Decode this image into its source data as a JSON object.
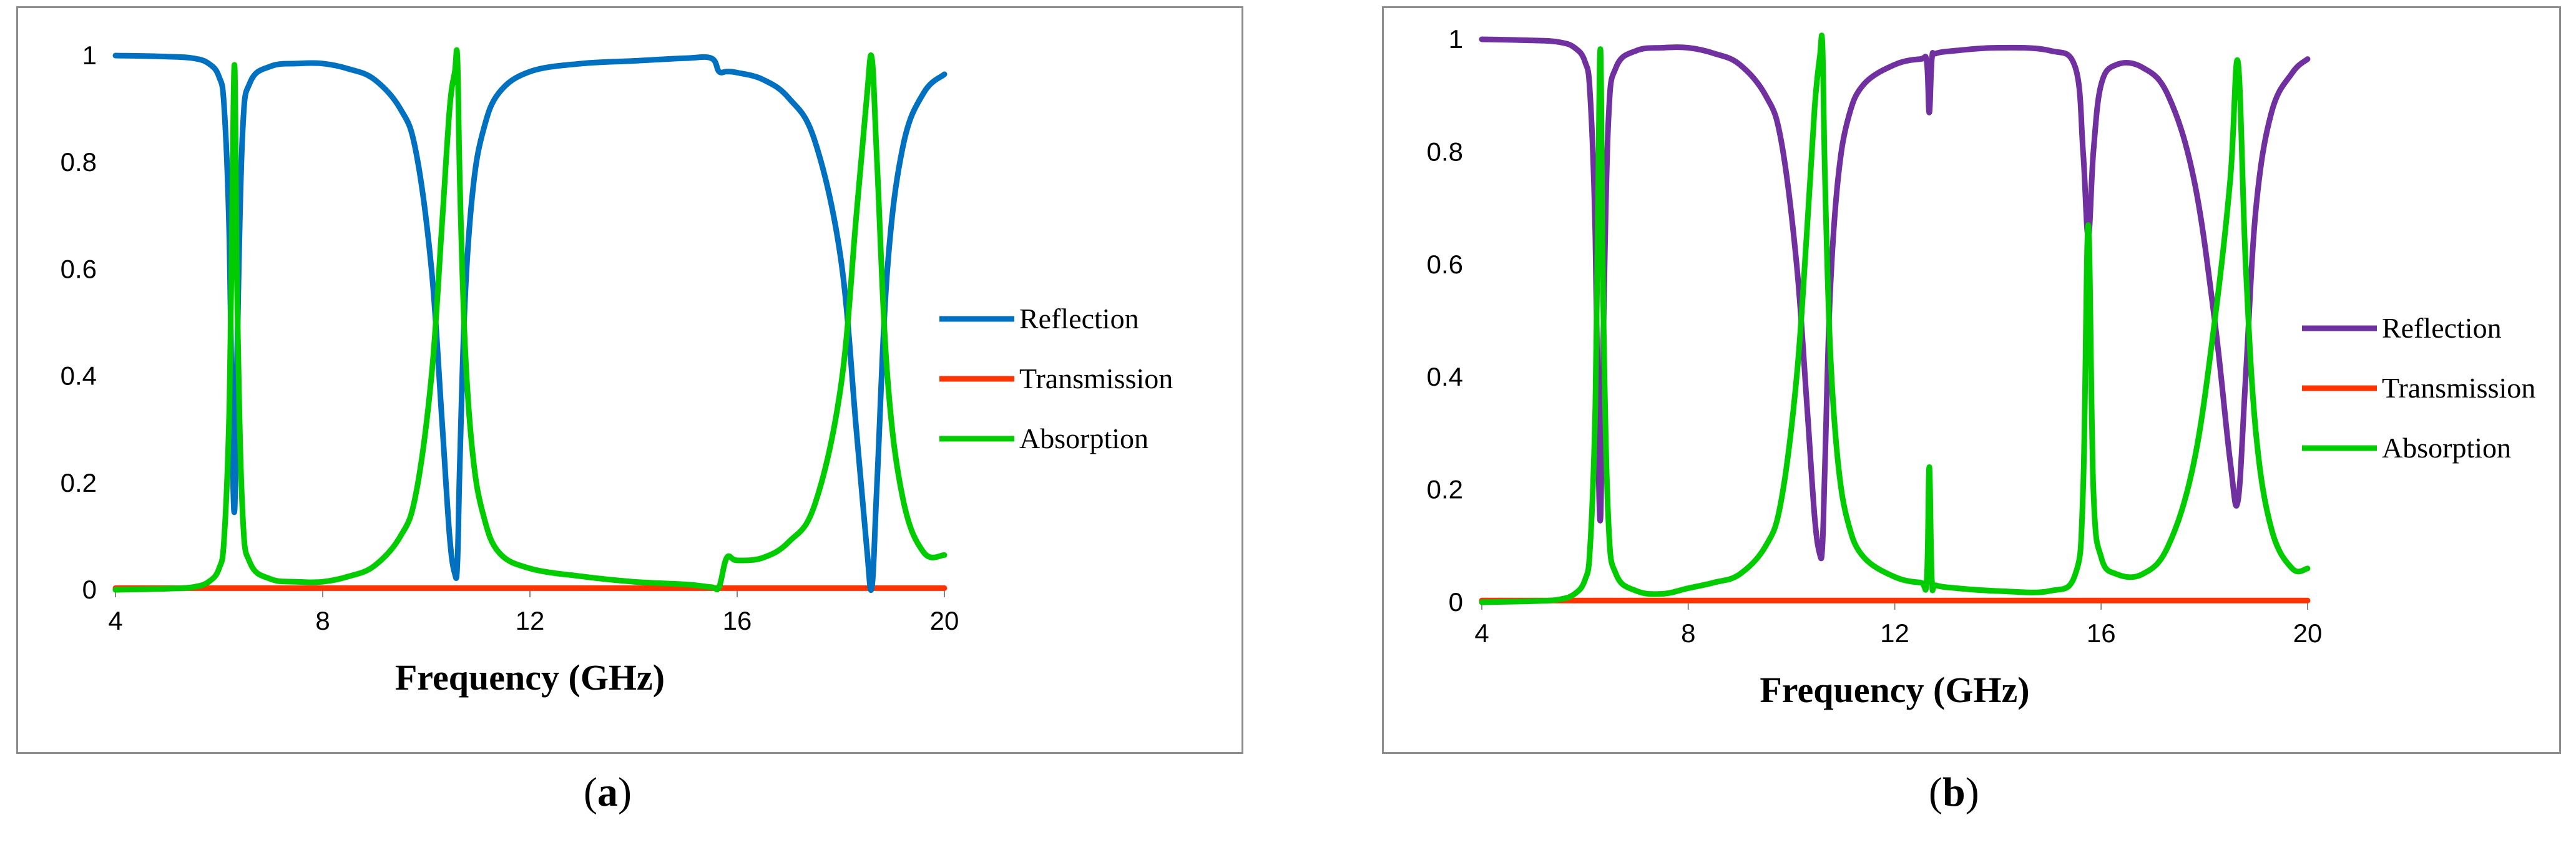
{
  "chart_data": [
    {
      "type": "line",
      "panel": "a",
      "caption": "a",
      "title": "",
      "xlabel": "Frequency (GHz)",
      "ylabel": "",
      "xlim": [
        4,
        20
      ],
      "ylim": [
        0,
        1
      ],
      "xticks": [
        "4",
        "8",
        "12",
        "16",
        "20"
      ],
      "yticks": [
        "0",
        "0.2",
        "0.4",
        "0.6",
        "0.8",
        "1"
      ],
      "legend_position": "right",
      "series": [
        {
          "name": "Reflection",
          "color": "#0070c0",
          "x": [
            4,
            5,
            5.5,
            5.8,
            6.0,
            6.1,
            6.2,
            6.25,
            6.3,
            6.35,
            6.45,
            6.6,
            7.0,
            7.5,
            8,
            8.5,
            9,
            9.5,
            9.8,
            10.1,
            10.3,
            10.45,
            10.55,
            10.6,
            10.65,
            10.75,
            10.9,
            11.1,
            11.4,
            12,
            13,
            14,
            15,
            15.5,
            15.65,
            15.8,
            16,
            16.5,
            17,
            17.5,
            18,
            18.3,
            18.5,
            18.6,
            18.7,
            18.9,
            19.2,
            19.6,
            20
          ],
          "values": [
            1,
            0.998,
            0.995,
            0.985,
            0.96,
            0.9,
            0.65,
            0.3,
            0.15,
            0.45,
            0.85,
            0.95,
            0.98,
            0.985,
            0.985,
            0.975,
            0.955,
            0.9,
            0.82,
            0.6,
            0.32,
            0.1,
            0.03,
            0.05,
            0.25,
            0.55,
            0.75,
            0.86,
            0.93,
            0.97,
            0.985,
            0.99,
            0.995,
            0.995,
            0.97,
            0.97,
            0.968,
            0.955,
            0.92,
            0.84,
            0.62,
            0.3,
            0.08,
            0.005,
            0.2,
            0.6,
            0.83,
            0.93,
            0.965
          ]
        },
        {
          "name": "Transmission",
          "color": "#ff3300",
          "x": [
            4,
            20
          ],
          "values": [
            0.003,
            0.003
          ]
        },
        {
          "name": "Absorption",
          "color": "#00cc00",
          "x": [
            4,
            5,
            5.5,
            5.8,
            6.0,
            6.1,
            6.2,
            6.25,
            6.3,
            6.35,
            6.45,
            6.6,
            7.0,
            7.5,
            8,
            8.5,
            9,
            9.5,
            9.8,
            10.1,
            10.3,
            10.45,
            10.55,
            10.6,
            10.65,
            10.75,
            10.9,
            11.1,
            11.4,
            12,
            13,
            14,
            15,
            15.5,
            15.65,
            15.8,
            16,
            16.5,
            17,
            17.5,
            18,
            18.3,
            18.5,
            18.6,
            18.7,
            18.9,
            19.2,
            19.6,
            20
          ],
          "values": [
            0,
            0.002,
            0.005,
            0.015,
            0.04,
            0.1,
            0.35,
            0.7,
            0.98,
            0.55,
            0.15,
            0.05,
            0.02,
            0.015,
            0.015,
            0.025,
            0.045,
            0.1,
            0.18,
            0.4,
            0.68,
            0.9,
            0.97,
            0.995,
            0.75,
            0.45,
            0.25,
            0.14,
            0.07,
            0.04,
            0.025,
            0.015,
            0.01,
            0.005,
            0.005,
            0.06,
            0.055,
            0.06,
            0.09,
            0.16,
            0.38,
            0.7,
            0.92,
            0.995,
            0.8,
            0.4,
            0.17,
            0.07,
            0.065
          ]
        }
      ]
    },
    {
      "type": "line",
      "panel": "b",
      "caption": "b",
      "title": "",
      "xlabel": "Frequency (GHz)",
      "ylabel": "",
      "xlim": [
        4,
        20
      ],
      "ylim": [
        0,
        1
      ],
      "xticks": [
        "4",
        "8",
        "12",
        "16",
        "20"
      ],
      "yticks": [
        "0",
        "0.2",
        "0.4",
        "0.6",
        "0.8",
        "1"
      ],
      "legend_position": "right",
      "series": [
        {
          "name": "Reflection",
          "color": "#7030a0",
          "x": [
            4,
            5,
            5.5,
            5.8,
            6.0,
            6.1,
            6.2,
            6.25,
            6.3,
            6.35,
            6.45,
            6.6,
            7.0,
            7.5,
            8,
            8.5,
            9,
            9.5,
            9.8,
            10.1,
            10.3,
            10.45,
            10.55,
            10.6,
            10.65,
            10.75,
            10.9,
            11.1,
            11.4,
            12,
            12.5,
            12.62,
            12.67,
            12.72,
            12.8,
            13.2,
            14,
            15,
            15.5,
            15.65,
            15.75,
            15.85,
            16.0,
            16.3,
            16.8,
            17.3,
            17.8,
            18.2,
            18.5,
            18.65,
            18.8,
            19.0,
            19.3,
            19.7,
            20
          ],
          "values": [
            1,
            0.998,
            0.995,
            0.985,
            0.96,
            0.9,
            0.65,
            0.3,
            0.15,
            0.45,
            0.85,
            0.95,
            0.98,
            0.985,
            0.985,
            0.975,
            0.955,
            0.9,
            0.82,
            0.6,
            0.35,
            0.15,
            0.085,
            0.1,
            0.25,
            0.55,
            0.75,
            0.86,
            0.92,
            0.955,
            0.965,
            0.96,
            0.87,
            0.965,
            0.975,
            0.98,
            0.985,
            0.98,
            0.95,
            0.8,
            0.65,
            0.8,
            0.92,
            0.955,
            0.95,
            0.9,
            0.75,
            0.5,
            0.25,
            0.18,
            0.4,
            0.7,
            0.87,
            0.94,
            0.965
          ]
        },
        {
          "name": "Transmission",
          "color": "#ff3300",
          "x": [
            4,
            20
          ],
          "values": [
            0.003,
            0.003
          ]
        },
        {
          "name": "Absorption",
          "color": "#00cc00",
          "x": [
            4,
            5,
            5.5,
            5.8,
            6.0,
            6.1,
            6.2,
            6.25,
            6.3,
            6.35,
            6.45,
            6.6,
            7.0,
            7.5,
            8,
            8.5,
            9,
            9.5,
            9.8,
            10.1,
            10.3,
            10.45,
            10.55,
            10.6,
            10.65,
            10.75,
            10.9,
            11.1,
            11.4,
            12,
            12.5,
            12.62,
            12.67,
            12.72,
            12.8,
            13.2,
            14,
            15,
            15.5,
            15.65,
            15.75,
            15.85,
            16.0,
            16.3,
            16.8,
            17.3,
            17.8,
            18.2,
            18.5,
            18.65,
            18.8,
            19.0,
            19.3,
            19.7,
            20
          ],
          "values": [
            0,
            0.002,
            0.005,
            0.015,
            0.04,
            0.1,
            0.35,
            0.7,
            0.98,
            0.55,
            0.15,
            0.05,
            0.02,
            0.015,
            0.025,
            0.035,
            0.05,
            0.1,
            0.18,
            0.4,
            0.66,
            0.88,
            0.97,
            0.99,
            0.75,
            0.45,
            0.25,
            0.14,
            0.08,
            0.045,
            0.035,
            0.04,
            0.24,
            0.04,
            0.03,
            0.025,
            0.02,
            0.02,
            0.05,
            0.2,
            0.67,
            0.2,
            0.08,
            0.05,
            0.05,
            0.1,
            0.25,
            0.5,
            0.75,
            0.96,
            0.6,
            0.3,
            0.13,
            0.06,
            0.06
          ]
        }
      ]
    }
  ]
}
